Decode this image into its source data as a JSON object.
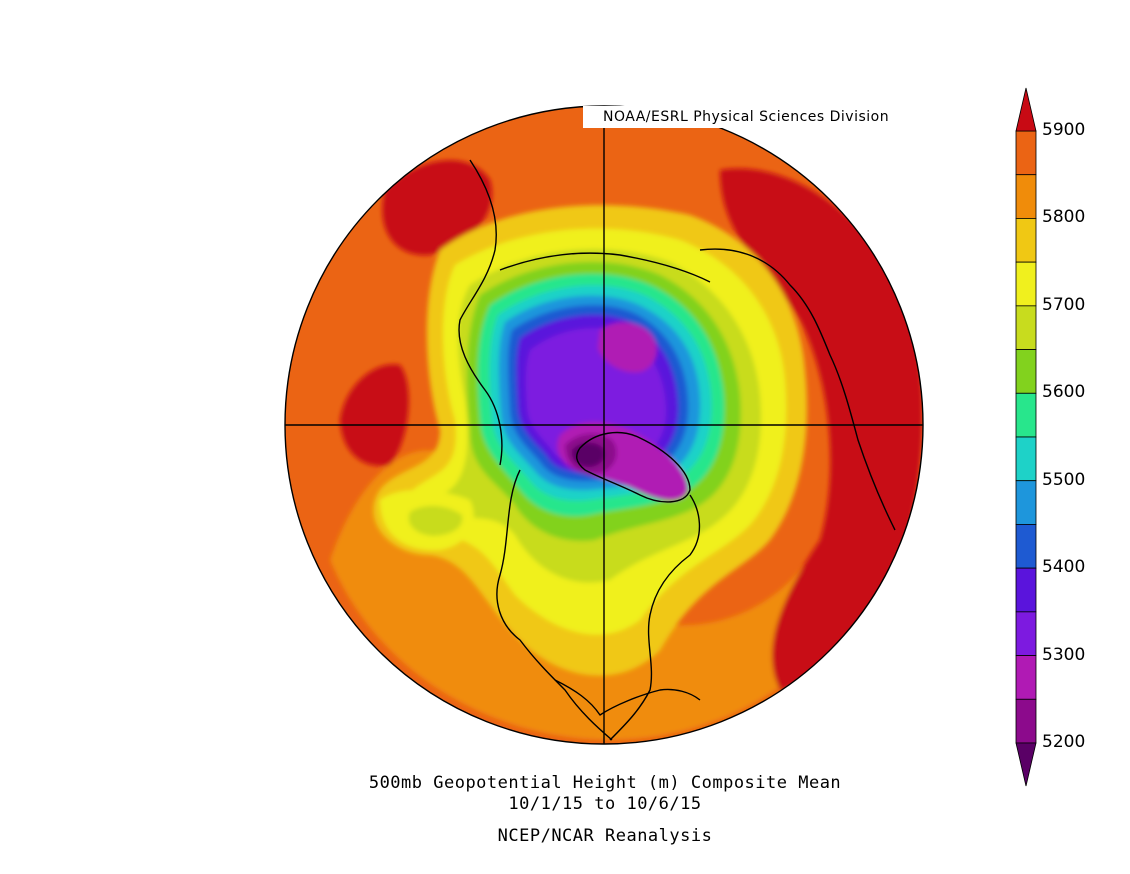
{
  "map": {
    "credit": "NOAA/ESRL Physical Sciences Division",
    "title": "500mb Geopotential Height (m) Composite Mean",
    "dates": "10/1/15  to 10/6/15",
    "source": "NCEP/NCAR Reanalysis",
    "projection": "north-polar-stereographic",
    "variable": "500mb geopotential height",
    "units": "m"
  },
  "colorbar": {
    "labels": [
      "5900",
      "5800",
      "5700",
      "5600",
      "5500",
      "5400",
      "5300",
      "5200"
    ],
    "levels": [
      5200,
      5250,
      5300,
      5350,
      5400,
      5450,
      5500,
      5550,
      5600,
      5650,
      5700,
      5750,
      5800,
      5850,
      5900
    ],
    "colors": [
      "#5a0066",
      "#8c0a8c",
      "#b01ab4",
      "#7d1ae0",
      "#5a14dc",
      "#1e5ad2",
      "#1e96dc",
      "#1ed2c8",
      "#28e68c",
      "#82d21e",
      "#c8dc1e",
      "#f0f01e",
      "#f0c814",
      "#f08c0a",
      "#eb6414",
      "#c80a14"
    ],
    "extend": "both"
  },
  "colors": {
    "ocean_background": "#eb6414",
    "coastline": "#000000",
    "gridline": "#000000"
  }
}
